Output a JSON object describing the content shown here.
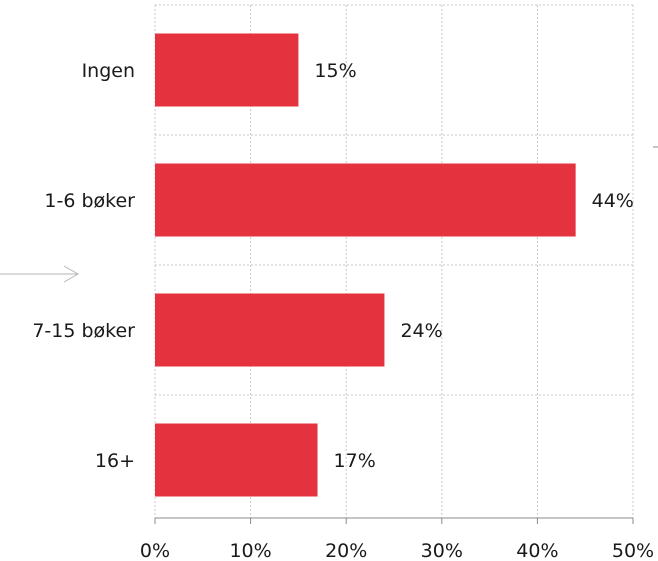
{
  "chart_data": {
    "type": "bar",
    "orientation": "horizontal",
    "categories": [
      "Ingen",
      "1-6 bøker",
      "7-15 bøker",
      "16+"
    ],
    "values": [
      15,
      44,
      24,
      17
    ],
    "value_labels": [
      "15%",
      "44%",
      "24%",
      "17%"
    ],
    "x_ticks": [
      0,
      10,
      20,
      30,
      40,
      50
    ],
    "x_tick_labels": [
      "0%",
      "10%",
      "20%",
      "30%",
      "40%",
      "50%"
    ],
    "xlim": [
      0,
      50
    ],
    "grid": true,
    "bar_color": "#e5323f",
    "grid_color": "#c8c8c8",
    "axis_color": "#8c8c8c",
    "arrow_color": "#b5b5b5"
  }
}
